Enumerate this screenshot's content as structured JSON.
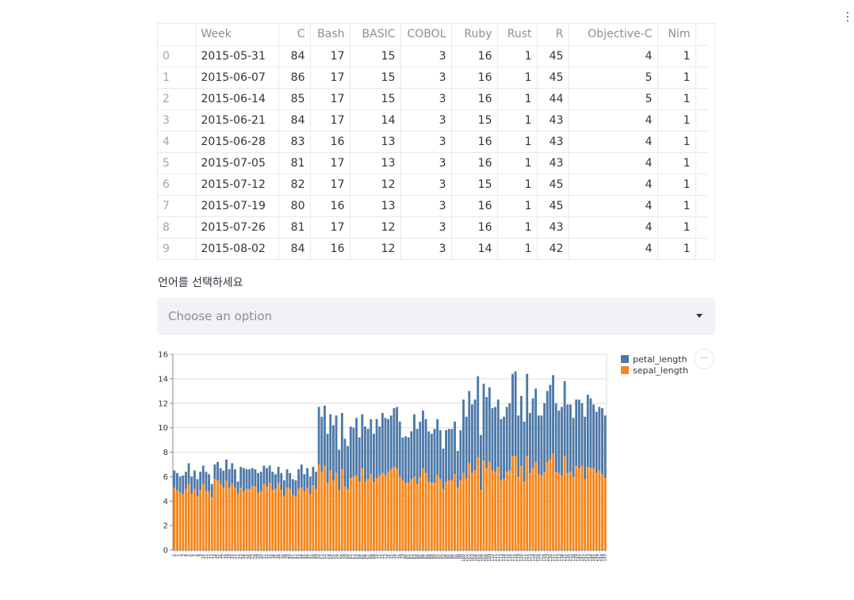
{
  "app_menu": {
    "icon": "vertical-dots-icon"
  },
  "table": {
    "columns": [
      "",
      "Week",
      "C",
      "Bash",
      "BASIC",
      "COBOL",
      "Ruby",
      "Rust",
      "R",
      "Objective-C",
      "Nim"
    ],
    "rows": [
      [
        "0",
        "2015-05-31",
        "84",
        "17",
        "15",
        "3",
        "16",
        "1",
        "45",
        "4",
        "1"
      ],
      [
        "1",
        "2015-06-07",
        "86",
        "17",
        "15",
        "3",
        "16",
        "1",
        "45",
        "5",
        "1"
      ],
      [
        "2",
        "2015-06-14",
        "85",
        "17",
        "15",
        "3",
        "16",
        "1",
        "44",
        "5",
        "1"
      ],
      [
        "3",
        "2015-06-21",
        "84",
        "17",
        "14",
        "3",
        "15",
        "1",
        "43",
        "4",
        "1"
      ],
      [
        "4",
        "2015-06-28",
        "83",
        "16",
        "13",
        "3",
        "16",
        "1",
        "43",
        "4",
        "1"
      ],
      [
        "5",
        "2015-07-05",
        "81",
        "17",
        "13",
        "3",
        "16",
        "1",
        "43",
        "4",
        "1"
      ],
      [
        "6",
        "2015-07-12",
        "82",
        "17",
        "12",
        "3",
        "15",
        "1",
        "45",
        "4",
        "1"
      ],
      [
        "7",
        "2015-07-19",
        "80",
        "16",
        "13",
        "3",
        "16",
        "1",
        "45",
        "4",
        "1"
      ],
      [
        "8",
        "2015-07-26",
        "81",
        "17",
        "12",
        "3",
        "16",
        "1",
        "43",
        "4",
        "1"
      ],
      [
        "9",
        "2015-08-02",
        "84",
        "16",
        "12",
        "3",
        "14",
        "1",
        "42",
        "4",
        "1"
      ]
    ]
  },
  "select": {
    "label": "언어를 선택하세요",
    "placeholder": "Choose an option",
    "caret_icon": "caret-down-icon"
  },
  "chart_menu": {
    "icon": "more-horizontal-icon",
    "label": "···"
  },
  "chart_data": {
    "type": "bar",
    "stacked": true,
    "ylim": [
      0,
      16
    ],
    "yticks": [
      "0",
      "2",
      "4",
      "6",
      "8",
      "10",
      "12",
      "14",
      "16"
    ],
    "grid": true,
    "legend_position": "right",
    "series": [
      {
        "name": "sepal_length",
        "color": "#f58518",
        "values": [
          5.1,
          4.9,
          4.7,
          4.6,
          5.0,
          5.4,
          4.6,
          5.0,
          4.4,
          4.9,
          5.4,
          4.8,
          4.8,
          4.3,
          5.8,
          5.7,
          5.4,
          5.1,
          5.7,
          5.1,
          5.4,
          5.1,
          4.6,
          5.1,
          4.8,
          5.0,
          5.0,
          5.2,
          5.2,
          4.7,
          4.8,
          5.4,
          5.2,
          5.5,
          4.9,
          5.0,
          5.5,
          4.9,
          4.4,
          5.1,
          5.0,
          4.5,
          4.4,
          5.0,
          5.1,
          4.8,
          5.1,
          4.6,
          5.3,
          5.0,
          7.0,
          6.4,
          6.9,
          5.5,
          6.5,
          5.7,
          6.3,
          4.9,
          6.6,
          5.2,
          5.0,
          5.9,
          6.0,
          6.1,
          5.6,
          6.7,
          5.6,
          5.8,
          6.2,
          5.6,
          5.9,
          6.1,
          6.3,
          6.1,
          6.4,
          6.6,
          6.8,
          6.7,
          6.0,
          5.7,
          5.5,
          5.5,
          5.8,
          6.0,
          5.4,
          6.0,
          6.7,
          6.3,
          5.6,
          5.5,
          5.5,
          6.1,
          5.8,
          5.0,
          5.6,
          5.7,
          5.7,
          6.2,
          5.1,
          5.7,
          6.3,
          5.8,
          7.1,
          6.3,
          6.5,
          7.6,
          4.9,
          7.3,
          6.7,
          7.2,
          6.5,
          6.4,
          6.8,
          5.7,
          5.8,
          6.4,
          6.5,
          7.7,
          7.7,
          6.0,
          6.9,
          5.6,
          7.7,
          6.3,
          6.7,
          7.2,
          6.2,
          6.1,
          6.4,
          7.2,
          7.4,
          7.9,
          6.4,
          6.3,
          6.1,
          7.7,
          6.3,
          6.4,
          6.0,
          6.9,
          6.7,
          6.9,
          5.8,
          6.8,
          6.7,
          6.7,
          6.3,
          6.5,
          6.2,
          5.9
        ]
      },
      {
        "name": "petal_length",
        "color": "#4c78a8",
        "values": [
          1.4,
          1.4,
          1.3,
          1.5,
          1.4,
          1.7,
          1.4,
          1.5,
          1.4,
          1.5,
          1.5,
          1.6,
          1.4,
          1.1,
          1.2,
          1.5,
          1.3,
          1.4,
          1.7,
          1.5,
          1.7,
          1.5,
          1.0,
          1.7,
          1.9,
          1.6,
          1.6,
          1.5,
          1.4,
          1.6,
          1.6,
          1.5,
          1.5,
          1.4,
          1.5,
          1.2,
          1.3,
          1.4,
          1.3,
          1.5,
          1.3,
          1.3,
          1.3,
          1.6,
          1.9,
          1.4,
          1.6,
          1.4,
          1.5,
          1.4,
          4.7,
          4.5,
          4.9,
          4.0,
          4.6,
          4.5,
          4.7,
          3.3,
          4.6,
          3.9,
          3.5,
          4.2,
          4.0,
          4.7,
          3.6,
          4.4,
          4.5,
          4.1,
          4.5,
          3.9,
          4.8,
          4.0,
          4.9,
          4.7,
          4.3,
          4.4,
          4.8,
          5.0,
          4.5,
          3.5,
          3.8,
          3.7,
          3.9,
          5.1,
          4.5,
          4.5,
          4.7,
          4.4,
          4.1,
          4.0,
          4.4,
          4.6,
          4.0,
          3.3,
          4.2,
          4.2,
          4.2,
          4.3,
          3.0,
          4.1,
          6.0,
          5.1,
          5.9,
          5.6,
          5.8,
          6.6,
          4.5,
          6.3,
          5.8,
          6.1,
          5.1,
          5.3,
          5.5,
          5.0,
          5.1,
          5.3,
          5.5,
          6.7,
          6.9,
          5.0,
          5.7,
          4.9,
          6.7,
          4.9,
          5.7,
          6.0,
          4.8,
          4.9,
          5.6,
          5.8,
          6.1,
          6.4,
          5.6,
          5.1,
          5.6,
          6.1,
          5.6,
          5.5,
          4.8,
          5.4,
          5.6,
          5.1,
          5.1,
          5.9,
          5.7,
          5.2,
          5.0,
          5.2,
          5.4,
          5.1
        ]
      }
    ]
  }
}
